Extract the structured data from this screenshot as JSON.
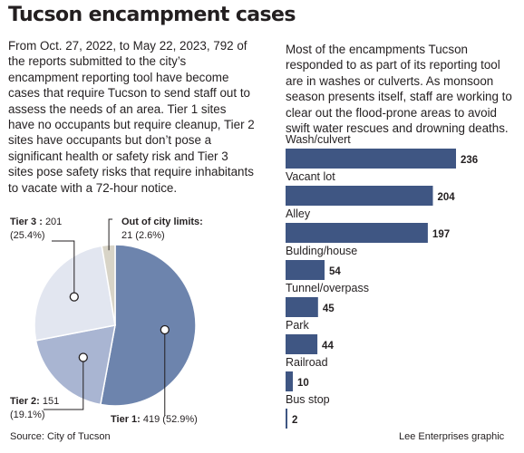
{
  "header": {
    "title": "Tucson encampment cases"
  },
  "intro_text": "From Oct. 27, 2022, to May 22, 2023, 792 of the reports submitted to the city’s encampment reporting tool have become cases that require Tucson to send staff out to assess the needs of an area. Tier 1 sites have no occupants but require cleanup, Tier 2 sites have occupants but don’t pose a significant health or safety risk and Tier 3 sites pose safety risks that require inhabitants to vacate with a 72-hour notice.",
  "bar_intro_text": "Most of the encampments Tucson responded to as part of its reporting tool are in washes or culverts. As monsoon season presents itself, staff are working to clear out the flood-prone areas to avoid swift water rescues and drowning deaths.",
  "source": "Source: City of Tucson",
  "credit": "Lee Enterprises graphic",
  "colors": {
    "tier1": "#6d84ad",
    "tier2": "#a9b5d2",
    "tier3": "#e2e6f0",
    "out_of_city": "#d8d4c7",
    "bar": "#3f5683",
    "leader": "#231f20"
  },
  "chart_data": [
    {
      "type": "pie",
      "total": 792,
      "slices": [
        {
          "name": "Tier 1",
          "label": "Tier 1:",
          "value": 419,
          "value_text": "419 (52.9%)",
          "percent": 52.9,
          "color_key": "tier1"
        },
        {
          "name": "Tier 2",
          "label": "Tier 2:",
          "value": 151,
          "value_text": "151",
          "percent_text": "(19.1%)",
          "percent": 19.1,
          "color_key": "tier2"
        },
        {
          "name": "Tier 3",
          "label": "Tier 3 :",
          "value": 201,
          "value_text": "201",
          "percent_text": "(25.4%)",
          "percent": 25.4,
          "color_key": "tier3"
        },
        {
          "name": "Out of city limits",
          "label": "Out of city limits:",
          "value": 21,
          "value_text": "21 (2.6%)",
          "percent": 2.6,
          "color_key": "out_of_city"
        }
      ]
    },
    {
      "type": "bar",
      "orientation": "horizontal",
      "categories": [
        "Wash/culvert",
        "Vacant lot",
        "Alley",
        "Bulding/house",
        "Tunnel/overpass",
        "Park",
        "Railroad",
        "Bus stop"
      ],
      "values": [
        236,
        204,
        197,
        54,
        45,
        44,
        10,
        2
      ],
      "xlim": [
        0,
        236
      ]
    }
  ]
}
